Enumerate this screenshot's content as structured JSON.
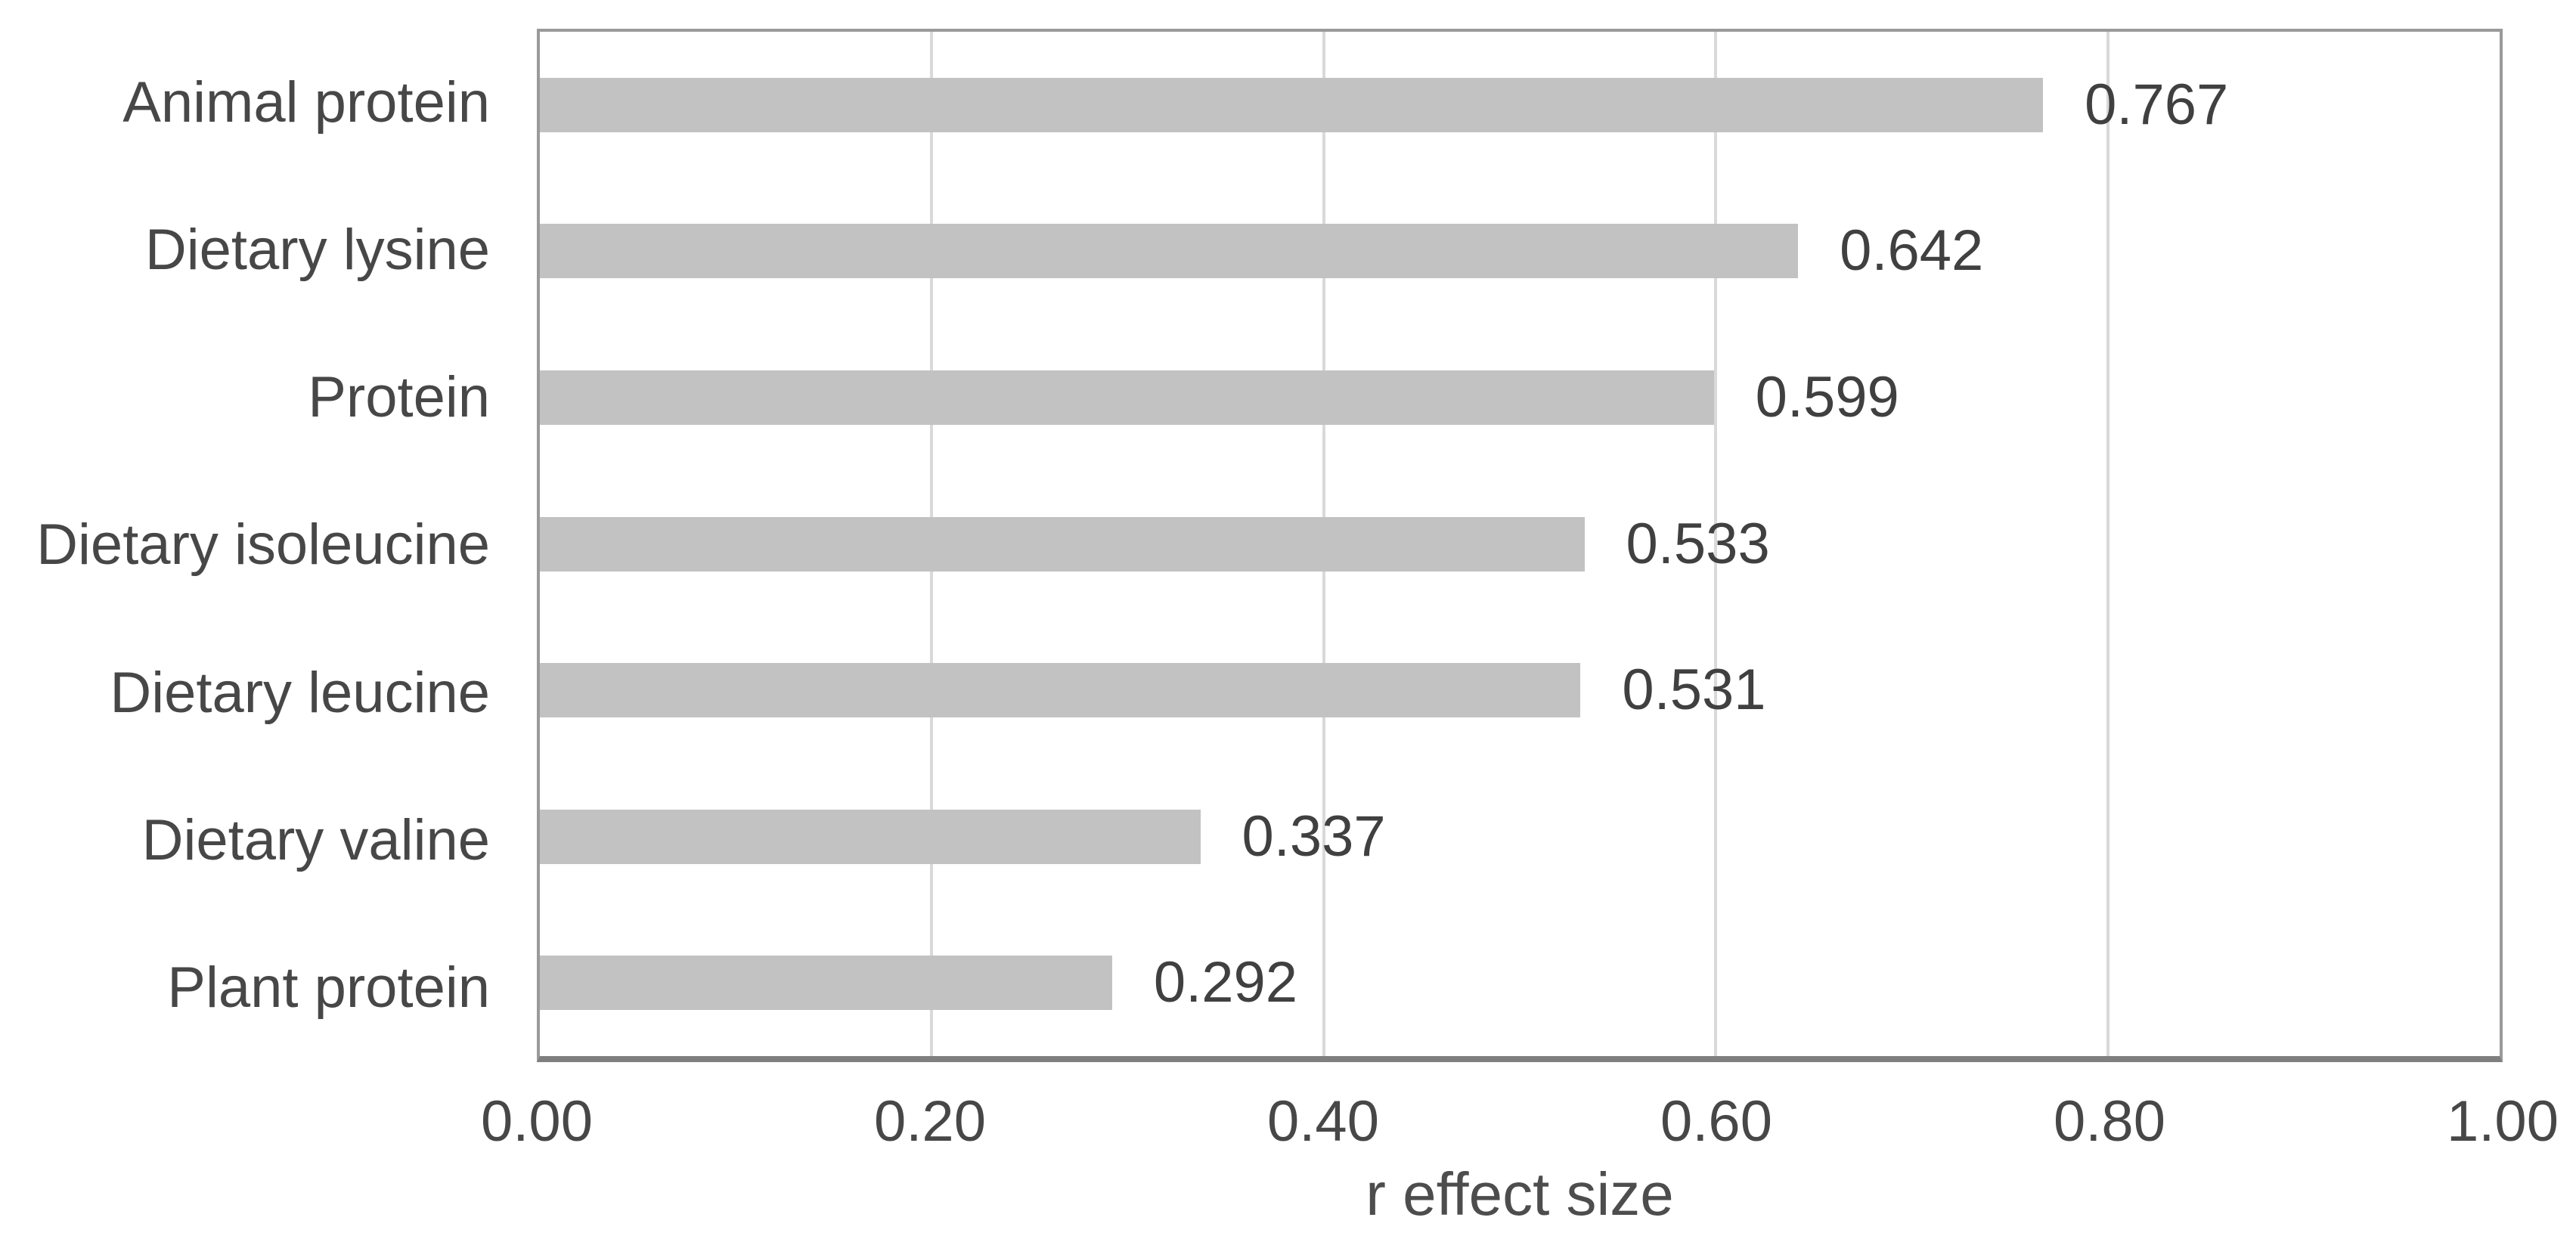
{
  "chart_data": {
    "type": "bar",
    "orientation": "horizontal",
    "title": "",
    "xlabel": "r effect size",
    "ylabel": "",
    "categories": [
      "Animal protein",
      "Dietary lysine",
      "Protein",
      "Dietary isoleucine",
      "Dietary leucine",
      "Dietary valine",
      "Plant protein"
    ],
    "values": [
      0.767,
      0.642,
      0.599,
      0.533,
      0.531,
      0.337,
      0.292
    ],
    "value_labels": [
      "0.767",
      "0.642",
      "0.599",
      "0.533",
      "0.531",
      "0.337",
      "0.292"
    ],
    "xlim": [
      0,
      1
    ],
    "xticks": [
      0,
      0.2,
      0.4,
      0.6,
      0.8,
      1
    ],
    "xtick_labels": [
      "0.00",
      "0.20",
      "0.40",
      "0.60",
      "0.80",
      "1.00"
    ],
    "grid": true,
    "legend_position": "none",
    "colors": {
      "bar_fill": "#c2c2c2",
      "gridline": "#d9d9d9",
      "plot_border": "#9a9a9a",
      "axis_line": "#7f7f7f",
      "label_text": "#474747",
      "value_text": "#404040"
    }
  }
}
